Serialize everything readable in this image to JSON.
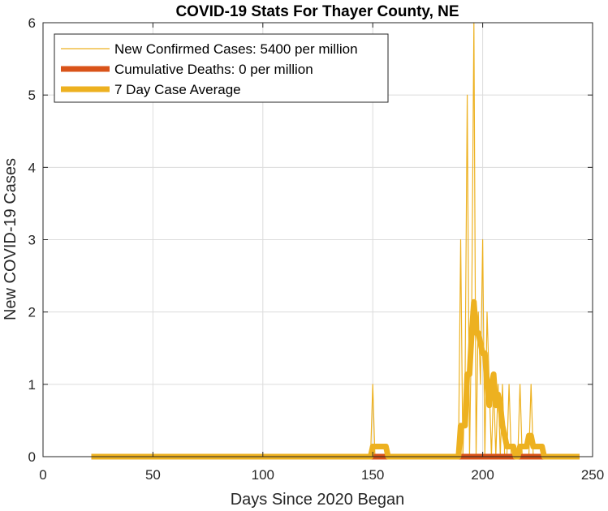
{
  "chart_data": {
    "type": "line",
    "title": "COVID-19 Stats For Thayer County, NE",
    "xlabel": "Days Since 2020 Began",
    "ylabel": "New COVID-19 Cases",
    "xlim": [
      0,
      250
    ],
    "ylim": [
      0,
      6
    ],
    "xticks": [
      0,
      50,
      100,
      150,
      200,
      250
    ],
    "yticks": [
      0,
      1,
      2,
      3,
      4,
      5,
      6
    ],
    "grid": true,
    "legend_position": "top-left",
    "series": [
      {
        "name": "New Confirmed Cases: 5400 per million",
        "color": "#EDB120",
        "style": "thin",
        "x": [
          22,
          149,
          150,
          151,
          189,
          190,
          191,
          192,
          193,
          194,
          195,
          196,
          197,
          198,
          199,
          200,
          201,
          202,
          203,
          204,
          205,
          206,
          207,
          208,
          209,
          210,
          211,
          212,
          213,
          214,
          215,
          216,
          217,
          218,
          219,
          220,
          221,
          222,
          223,
          224,
          244
        ],
        "y": [
          0,
          0,
          1,
          0,
          0,
          3,
          0,
          1,
          5,
          0,
          2,
          6,
          0,
          2,
          1,
          3,
          0,
          2,
          1,
          0,
          1,
          0,
          1,
          0,
          1,
          0,
          0,
          1,
          0,
          0,
          0,
          0,
          1,
          0,
          0,
          0,
          0,
          1,
          0,
          0,
          0
        ]
      },
      {
        "name": "Cumulative Deaths: 0 per million",
        "color": "#D95319",
        "style": "thick",
        "x": [
          22,
          244
        ],
        "y": [
          0,
          0
        ]
      },
      {
        "name": "7 Day Case Average",
        "color": "#EDB120",
        "style": "thick",
        "x": [
          22,
          149,
          150,
          156,
          157,
          189,
          190,
          192,
          193,
          194,
          195,
          196,
          197,
          198,
          199,
          200,
          201,
          202,
          203,
          204,
          205,
          206,
          207,
          208,
          209,
          210,
          211,
          212,
          213,
          214,
          215,
          216,
          217,
          218,
          219,
          220,
          221,
          222,
          223,
          224,
          227,
          228,
          244
        ],
        "y": [
          0,
          0,
          0.14,
          0.14,
          0,
          0,
          0.43,
          0.43,
          1.14,
          1.14,
          1.71,
          2.14,
          1.71,
          1.71,
          1.57,
          1.43,
          1.43,
          1.0,
          0.71,
          1.0,
          1.14,
          0.71,
          0.86,
          0.71,
          0.43,
          0.29,
          0.14,
          0.14,
          0.14,
          0.14,
          0.0,
          0.0,
          0.14,
          0.14,
          0.14,
          0.14,
          0.29,
          0.29,
          0.14,
          0.14,
          0.14,
          0,
          0
        ]
      }
    ]
  }
}
